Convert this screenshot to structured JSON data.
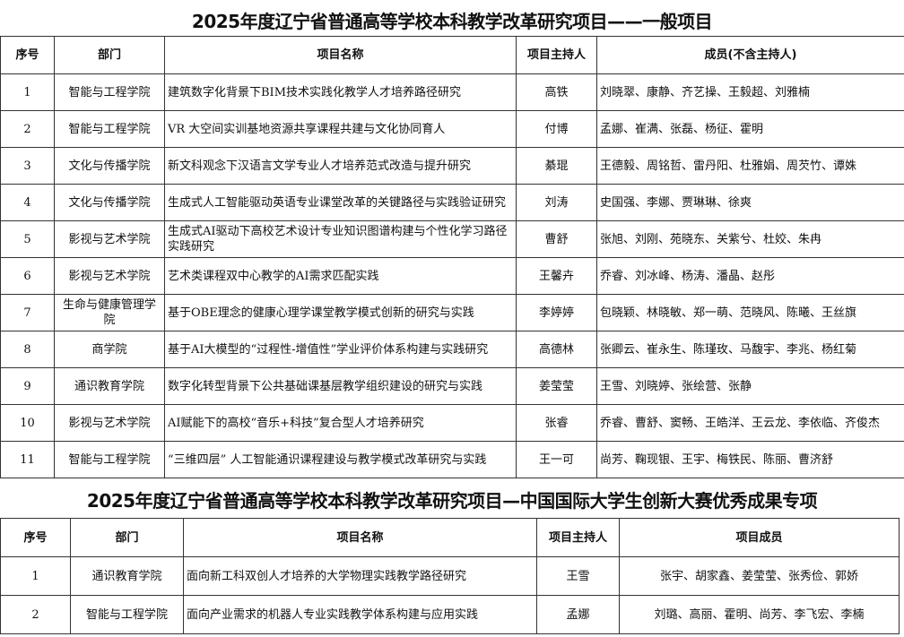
{
  "table1": {
    "title": "2025年度辽宁省普通高等学校本科教学改革研究项目——一般项目",
    "headers": [
      "序号",
      "部门",
      "项目名称",
      "项目主持人",
      "成员(不含主持人)"
    ],
    "rows": [
      [
        "1",
        "智能与工程学院",
        "建筑数字化背景下BIM技术实践化教学人才培养路径研究",
        "高铁",
        "刘晓翠、康静、齐艺操、王毅超、刘雅楠"
      ],
      [
        "2",
        "智能与工程学院",
        "VR 大空间实训基地资源共享课程共建与文化协同育人",
        "付博",
        "孟娜、崔满、张磊、杨征、霍明"
      ],
      [
        "3",
        "文化与传播学院",
        "新文科观念下汉语言文学专业人才培养范式改造与提升研究",
        "綦琨",
        "王德毅、周铭哲、雷丹阳、杜雅娟、周芡竹、谭姝"
      ],
      [
        "4",
        "文化与传播学院",
        "生成式人工智能驱动英语专业课堂改革的关键路径与实践验证研究",
        "刘涛",
        "史国强、李娜、贾琳琳、徐爽"
      ],
      [
        "5",
        "影视与艺术学院",
        "生成式AI驱动下高校艺术设计专业知识图谱构建与个性化学习路径实践研究",
        "曹舒",
        "张旭、刘刚、苑晓东、关紫兮、杜姣、朱冉"
      ],
      [
        "6",
        "影视与艺术学院",
        "艺术类课程双中心教学的AI需求匹配实践",
        "王馨卉",
        "乔睿、刘冰峰、杨涛、潘晶、赵彤"
      ],
      [
        "7",
        "生命与健康管理学院",
        "基于OBE理念的健康心理学课堂教学模式创新的研究与实践",
        "李婷婷",
        "包晓颖、林晓敏、郑一萌、范晓风、陈曦、王丝旗"
      ],
      [
        "8",
        "商学院",
        "基于AI大模型的“过程性-增值性”学业评价体系构建与实践研究",
        "高德林",
        "张卿云、崔永生、陈瑾玫、马馥宇、李兆、杨红菊"
      ],
      [
        "9",
        "通识教育学院",
        "数字化转型背景下公共基础课基层教学组织建设的研究与实践",
        "姜莹莹",
        "王雪、刘晓婷、张绘营、张静"
      ],
      [
        "10",
        "影视与艺术学院",
        "AI赋能下的高校“音乐+科技”复合型人才培养研究",
        "张睿",
        "乔睿、曹舒、窦畅、王皓洋、王云龙、李依临、齐俊杰"
      ],
      [
        "11",
        "智能与工程学院",
        "“三维四层” 人工智能通识课程建设与教学模式改革研究与实践",
        "王一可",
        "尚芳、鞠现银、王宇、梅铁民、陈丽、曹济舒"
      ]
    ]
  },
  "table2": {
    "title": "2025年度辽宁省普通高等学校本科教学改革研究项目—中国国际大学生创新大赛优秀成果专项",
    "headers": [
      "序号",
      "部门",
      "项目名称",
      "项目主持人",
      "项目成员"
    ],
    "rows": [
      [
        "1",
        "通识教育学院",
        "面向新工科双创人才培养的大学物理实践教学路径研究",
        "王雪",
        "张宇、胡家鑫、姜莹莹、张秀俭、郭娇"
      ],
      [
        "2",
        "智能与工程学院",
        "面向产业需求的机器人专业实践教学体系构建与应用实践",
        "孟娜",
        "刘璐、高丽、霍明、尚芳、李飞宏、李楠"
      ]
    ]
  }
}
